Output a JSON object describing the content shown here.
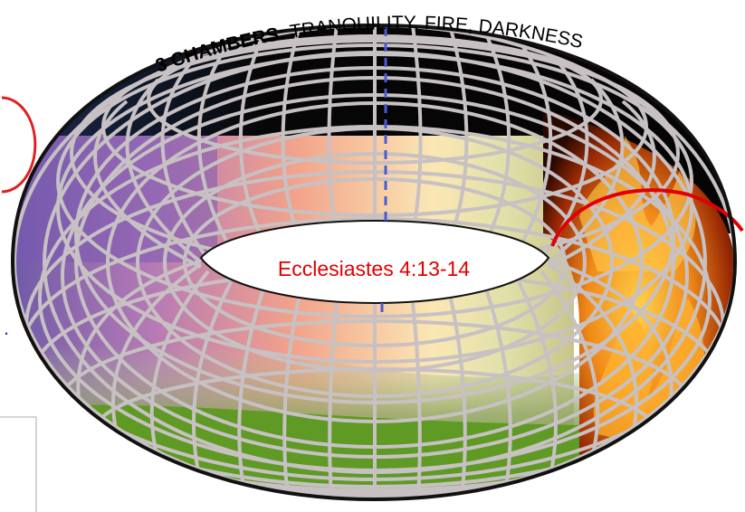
{
  "title": {
    "bold_part": "3 CHAMBERS:",
    "rest_part": " TRANQUILITY, FIRE, DARKNESS"
  },
  "caption": "Ecclesiastes 4:13-14",
  "left_dot": ".",
  "colors": {
    "caption": "#e00000",
    "outline": "#111111",
    "grid": "#c7c1c3",
    "fire_line": "#e00000",
    "left_circle": "#e02020",
    "divider": "#4a5bd6"
  }
}
